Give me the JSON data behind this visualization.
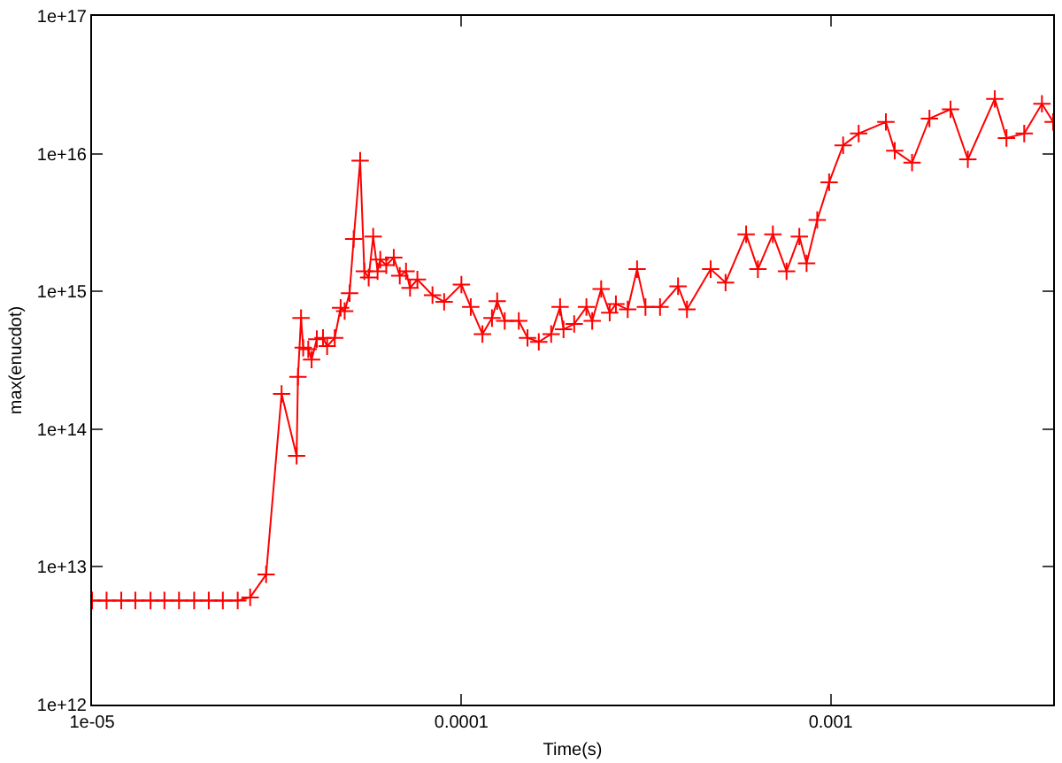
{
  "chart_data": {
    "type": "line",
    "xlabel": "Time(s)",
    "ylabel": "max(enucdot)",
    "log": "xy",
    "marker": "cross",
    "line_style": "solid",
    "xlim": [
      1e-05,
      0.004
    ],
    "ylim": [
      1000000000000.0,
      1e+17
    ],
    "xticks": [
      {
        "value": 1e-05,
        "label": "1e-05"
      },
      {
        "value": 0.0001,
        "label": "0.0001"
      },
      {
        "value": 0.001,
        "label": "0.001"
      }
    ],
    "yticks": [
      {
        "value": 1000000000000.0,
        "label": "1e+12"
      },
      {
        "value": 10000000000000.0,
        "label": "1e+13"
      },
      {
        "value": 100000000000000.0,
        "label": "1e+14"
      },
      {
        "value": 1000000000000000.0,
        "label": "1e+15"
      },
      {
        "value": 1e+16,
        "label": "1e+16"
      },
      {
        "value": 1e+17,
        "label": "1e+17"
      }
    ],
    "series": [
      {
        "color": "#ff0000",
        "x": [
          1e-05,
          1.095e-05,
          1.2e-05,
          1.31e-05,
          1.44e-05,
          1.57e-05,
          1.72e-05,
          1.89e-05,
          2.07e-05,
          2.26e-05,
          2.48e-05,
          2.68e-05,
          2.96e-05,
          3.26e-05,
          3.58e-05,
          3.61e-05,
          3.68e-05,
          3.73e-05,
          3.85e-05,
          3.93e-05,
          4.06e-05,
          4.22e-05,
          4.33e-05,
          4.54e-05,
          4.71e-05,
          4.83e-05,
          4.98e-05,
          5.11e-05,
          5.32e-05,
          5.46e-05,
          5.61e-05,
          5.77e-05,
          5.93e-05,
          6.03e-05,
          6.26e-05,
          6.56e-05,
          6.81e-05,
          7.08e-05,
          7.26e-05,
          7.6e-05,
          8.35e-05,
          8.98e-05,
          0.0001,
          0.000106,
          0.000114,
          0.000121,
          0.000125,
          0.000131,
          0.000143,
          0.000151,
          0.000162,
          0.000175,
          0.000185,
          0.000189,
          0.000202,
          0.000218,
          0.000226,
          0.000239,
          0.000252,
          0.000262,
          0.000282,
          0.000299,
          0.000315,
          0.000345,
          0.000386,
          0.000408,
          0.000473,
          0.000519,
          0.00059,
          0.000635,
          0.000697,
          0.000759,
          0.000822,
          0.00086,
          0.000919,
          0.00099,
          0.00108,
          0.00119,
          0.00141,
          0.00149,
          0.00166,
          0.00185,
          0.00211,
          0.00235,
          0.00278,
          0.00299,
          0.00334,
          0.00373,
          0.004
        ],
        "values": [
          5700000000000.0,
          5700000000000.0,
          5700000000000.0,
          5700000000000.0,
          5700000000000.0,
          5700000000000.0,
          5700000000000.0,
          5700000000000.0,
          5700000000000.0,
          5700000000000.0,
          5700000000000.0,
          6000000000000.0,
          8800000000000.0,
          180000000000000.0,
          64000000000000.0,
          240000000000000.0,
          640000000000000.0,
          390000000000000.0,
          380000000000000.0,
          320000000000000.0,
          450000000000000.0,
          460000000000000.0,
          400000000000000.0,
          460000000000000.0,
          760000000000000.0,
          720000000000000.0,
          970000000000000.0,
          2400000000000000.0,
          8900000000000000.0,
          1400000000000000.0,
          1260000000000000.0,
          2500000000000000.0,
          1400000000000000.0,
          1700000000000000.0,
          1550000000000000.0,
          1760000000000000.0,
          1300000000000000.0,
          1400000000000000.0,
          1060000000000000.0,
          1220000000000000.0,
          940000000000000.0,
          840000000000000.0,
          1120000000000000.0,
          770000000000000.0,
          490000000000000.0,
          640000000000000.0,
          850000000000000.0,
          610000000000000.0,
          610000000000000.0,
          460000000000000.0,
          430000000000000.0,
          490000000000000.0,
          770000000000000.0,
          530000000000000.0,
          580000000000000.0,
          770000000000000.0,
          610000000000000.0,
          1040000000000000.0,
          700000000000000.0,
          810000000000000.0,
          740000000000000.0,
          1450000000000000.0,
          770000000000000.0,
          770000000000000.0,
          1090000000000000.0,
          740000000000000.0,
          1450000000000000.0,
          1160000000000000.0,
          2600000000000000.0,
          1450000000000000.0,
          2600000000000000.0,
          1400000000000000.0,
          2500000000000000.0,
          1600000000000000.0,
          3300000000000000.0,
          6200000000000000.0,
          1.15e+16,
          1.4e+16,
          1.7e+16,
          1.05e+16,
          8600000000000000.0,
          1.8e+16,
          2.1e+16,
          9100000000000000.0,
          2.5e+16,
          1.3e+16,
          1.4e+16,
          2.3e+16,
          1.7e+16
        ]
      }
    ]
  }
}
